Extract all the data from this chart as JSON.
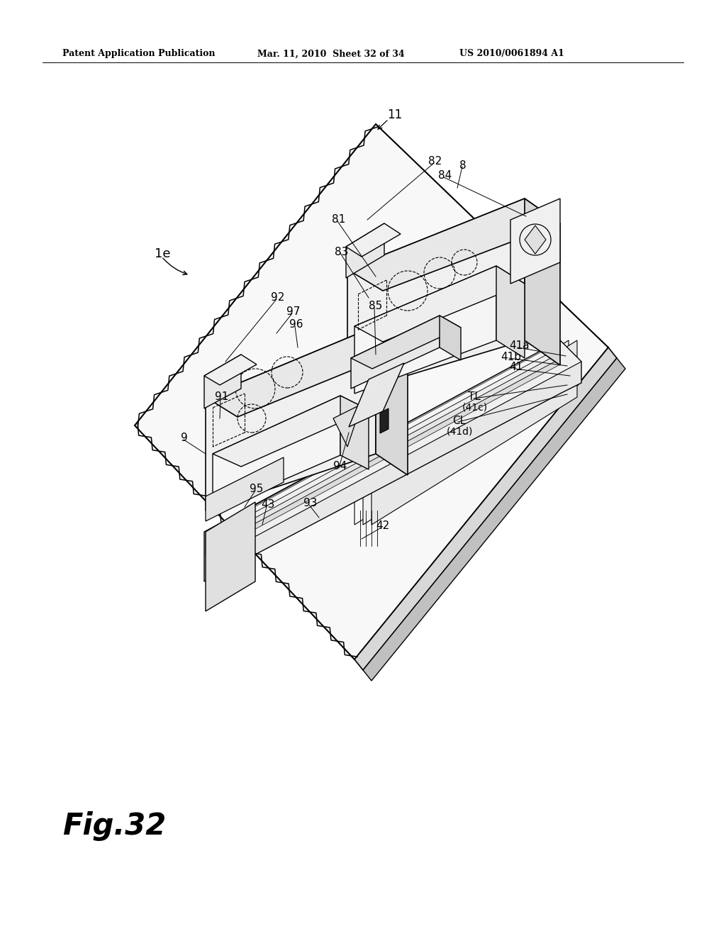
{
  "background_color": "#ffffff",
  "header_left": "Patent Application Publication",
  "header_mid": "Mar. 11, 2010  Sheet 32 of 34",
  "header_right": "US 2010/0061894 A1",
  "fig_label": "Fig.32",
  "label_1e": "1e",
  "line_color": "#000000",
  "face_white": "#ffffff",
  "face_light": "#f0f0f0",
  "face_mid": "#e0e0e0",
  "face_dark": "#c8c8c8"
}
